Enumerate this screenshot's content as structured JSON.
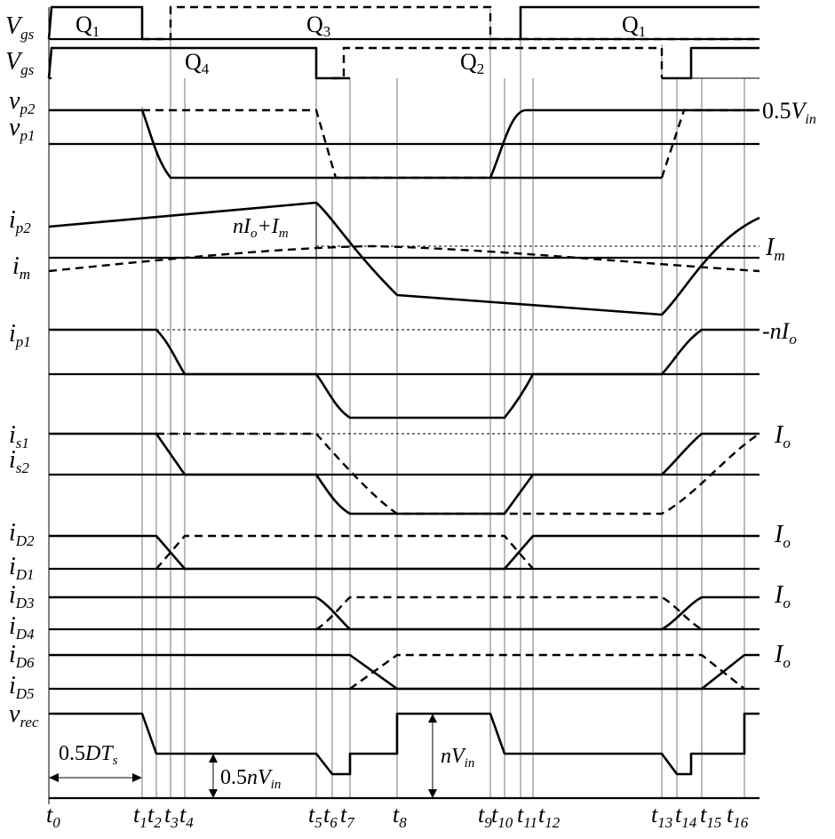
{
  "switches": {
    "q1_first": "Q",
    "q1_first_sub": "1",
    "q3": "Q",
    "q3_sub": "3",
    "q1_second": "Q",
    "q1_second_sub": "1",
    "q4": "Q",
    "q4_sub": "4",
    "q2": "Q",
    "q2_sub": "2"
  },
  "signals": {
    "vgs_a": "V",
    "vgs_a_sub": "gs",
    "vgs_b": "V",
    "vgs_b_sub": "gs",
    "vp2": "v",
    "vp2_sub": "p2",
    "vp1": "v",
    "vp1_sub": "p1",
    "ip2": "i",
    "ip2_sub": "p2",
    "im": "i",
    "im_sub": "m",
    "ip1": "i",
    "ip1_sub": "p1",
    "is1": "i",
    "is1_sub": "s1",
    "is2": "i",
    "is2_sub": "s2",
    "id2": "i",
    "id2_sub": "D2",
    "id1": "i",
    "id1_sub": "D1",
    "id3": "i",
    "id3_sub": "D3",
    "id4": "i",
    "id4_sub": "D4",
    "id6": "i",
    "id6_sub": "D6",
    "id5": "i",
    "id5_sub": "D5",
    "vrec": "v",
    "vrec_sub": "rec"
  },
  "right_labels": {
    "half_vin": "0.5",
    "half_vin_v": "V",
    "half_vin_sub": "in",
    "im": "I",
    "im_sub": "m",
    "nio_n": "n",
    "nio_i": "I",
    "nio_sub": "o",
    "io1": "I",
    "io1_sub": "o",
    "io2": "I",
    "io2_sub": "o",
    "io3": "I",
    "io3_sub": "o",
    "io4": "I",
    "io4_sub": "o"
  },
  "annotations": {
    "peak_a": "nI",
    "peak_a_sub": "o",
    "peak_b": "+I",
    "peak_b_sub": "m",
    "dts_a": "0.5",
    "dts_b": "DT",
    "dts_sub": "s",
    "halfnvin_a": "0.5",
    "halfnvin_b": "nV",
    "halfnvin_sub": "in",
    "nvin_a": "nV",
    "nvin_sub": "in"
  },
  "time_labels": [
    {
      "t": "t",
      "s": "0"
    },
    {
      "t": "t",
      "s": "1"
    },
    {
      "t": "t",
      "s": "2"
    },
    {
      "t": "t",
      "s": "3"
    },
    {
      "t": "t",
      "s": "4"
    },
    {
      "t": "t",
      "s": "5"
    },
    {
      "t": "t",
      "s": "6"
    },
    {
      "t": "t",
      "s": "7"
    },
    {
      "t": "t",
      "s": "8"
    },
    {
      "t": "t",
      "s": "9"
    },
    {
      "t": "t",
      "s": "10"
    },
    {
      "t": "t",
      "s": "11"
    },
    {
      "t": "t",
      "s": "12"
    },
    {
      "t": "t",
      "s": "13"
    },
    {
      "t": "t",
      "s": "14"
    },
    {
      "t": "t",
      "s": "15"
    },
    {
      "t": "t",
      "s": "16"
    }
  ]
}
